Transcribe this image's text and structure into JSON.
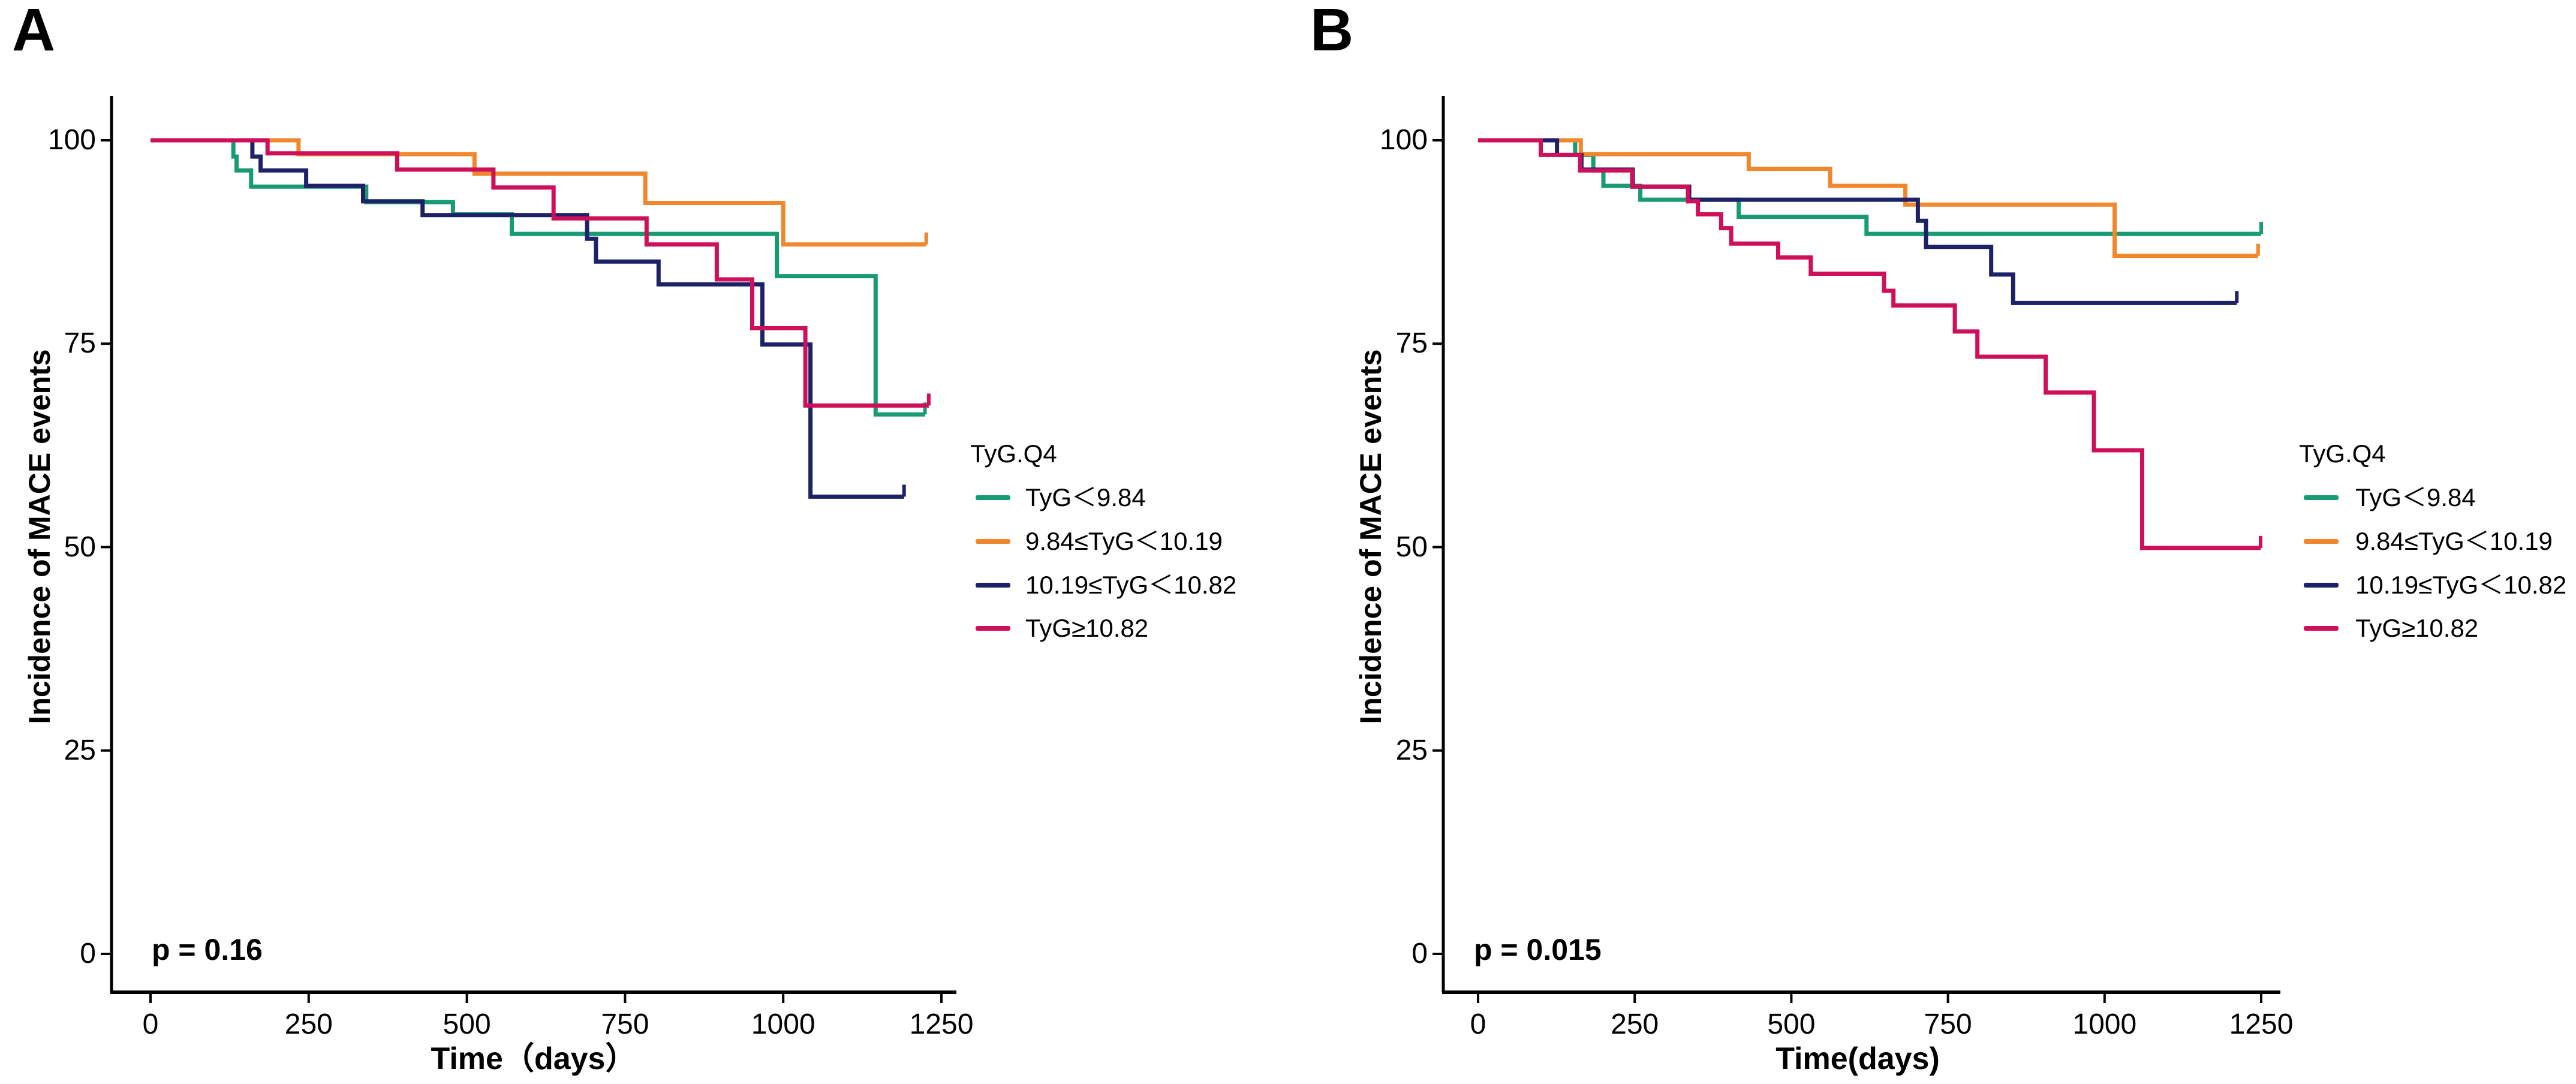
{
  "figure": {
    "background_color": "#ffffff",
    "axis_color": "#000000",
    "text_color": "#000000"
  },
  "chart_data": [
    {
      "type": "line",
      "subtype": "kaplan-meier-step",
      "panel_label": "A",
      "p_value": "p = 0.16",
      "xlabel": "Time（days）",
      "ylabel": "Incidence of MACE events",
      "legend_title": "TyG.Q4",
      "legend_position": "right",
      "grid": false,
      "xlim": [
        0,
        1270
      ],
      "ylim": [
        0,
        100
      ],
      "x_ticks": [
        0,
        250,
        500,
        750,
        1000,
        1250
      ],
      "y_ticks": [
        0,
        25,
        50,
        75,
        100
      ],
      "series": [
        {
          "name": "TyG＜9.84",
          "color": "#189A73",
          "points": [
            [
              0,
              100
            ],
            [
              131,
              98
            ],
            [
              136,
              96.3
            ],
            [
              159,
              94.3
            ],
            [
              341,
              92.4
            ],
            [
              478,
              90.9
            ],
            [
              571,
              88.5
            ],
            [
              990,
              83.3
            ],
            [
              1146,
              66.3
            ],
            [
              1224,
              66.3
            ]
          ]
        },
        {
          "name": "9.84≤TyG＜10.19",
          "color": "#F0872D",
          "points": [
            [
              0,
              100
            ],
            [
              234,
              98.3
            ],
            [
              512,
              95.9
            ],
            [
              782,
              92.3
            ],
            [
              1000,
              87.2
            ],
            [
              1226,
              87.2
            ]
          ]
        },
        {
          "name": "10.19≤TyG＜10.82",
          "color": "#1D2268",
          "points": [
            [
              0,
              100
            ],
            [
              161,
              98
            ],
            [
              174,
              96.3
            ],
            [
              246,
              94.4
            ],
            [
              336,
              92.5
            ],
            [
              430,
              90.8
            ],
            [
              690,
              87.9
            ],
            [
              704,
              85.1
            ],
            [
              803,
              82.3
            ],
            [
              967,
              74.9
            ],
            [
              1043,
              56.2
            ],
            [
              1191,
              56.2
            ]
          ]
        },
        {
          "name": "TyG≥10.82",
          "color": "#CE0F5A",
          "points": [
            [
              0,
              100
            ],
            [
              185,
              98.4
            ],
            [
              390,
              96.4
            ],
            [
              542,
              94.2
            ],
            [
              637,
              90.4
            ],
            [
              784,
              87.2
            ],
            [
              895,
              82.9
            ],
            [
              951,
              76.9
            ],
            [
              1035,
              67.4
            ],
            [
              1230,
              67.4
            ]
          ]
        }
      ]
    },
    {
      "type": "line",
      "subtype": "kaplan-meier-step",
      "panel_label": "B",
      "p_value": "p = 0.015",
      "xlabel": "Time(days)",
      "ylabel": "Incidence of MACE events",
      "legend_title": "TyG.Q4",
      "legend_position": "right",
      "grid": false,
      "xlim": [
        0,
        1280
      ],
      "ylim": [
        0,
        100
      ],
      "x_ticks": [
        0,
        250,
        500,
        750,
        1000,
        1250
      ],
      "y_ticks": [
        0,
        25,
        50,
        75,
        100
      ],
      "series": [
        {
          "name": "TyG＜9.84",
          "color": "#189A73",
          "points": [
            [
              0,
              100
            ],
            [
              155,
              98.2
            ],
            [
              184,
              96.3
            ],
            [
              200,
              94.4
            ],
            [
              259,
              92.7
            ],
            [
              416,
              90.6
            ],
            [
              620,
              88.5
            ],
            [
              1250,
              88.5
            ]
          ]
        },
        {
          "name": "9.84≤TyG＜10.19",
          "color": "#F0872D",
          "points": [
            [
              0,
              100
            ],
            [
              164,
              98.3
            ],
            [
              432,
              96.5
            ],
            [
              562,
              94.4
            ],
            [
              682,
              92.1
            ],
            [
              1016,
              85.8
            ],
            [
              1245,
              85.8
            ]
          ]
        },
        {
          "name": "10.19≤TyG＜10.82",
          "color": "#1D2268",
          "points": [
            [
              0,
              100
            ],
            [
              126,
              98.2
            ],
            [
              165,
              96.4
            ],
            [
              247,
              94.3
            ],
            [
              337,
              92.7
            ],
            [
              702,
              90.1
            ],
            [
              715,
              86.9
            ],
            [
              819,
              83.5
            ],
            [
              854,
              80
            ],
            [
              1211,
              80
            ]
          ]
        },
        {
          "name": "TyG≥10.82",
          "color": "#CE0F5A",
          "points": [
            [
              0,
              100
            ],
            [
              100,
              98.2
            ],
            [
              163,
              96.3
            ],
            [
              246,
              94.3
            ],
            [
              335,
              92.5
            ],
            [
              351,
              90.9
            ],
            [
              388,
              89.2
            ],
            [
              404,
              87.3
            ],
            [
              479,
              85.6
            ],
            [
              531,
              83.6
            ],
            [
              648,
              81.5
            ],
            [
              663,
              79.7
            ],
            [
              761,
              76.5
            ],
            [
              797,
              73.4
            ],
            [
              906,
              69
            ],
            [
              983,
              61.9
            ],
            [
              1060,
              49.9
            ],
            [
              1249,
              49.9
            ]
          ]
        }
      ]
    }
  ]
}
